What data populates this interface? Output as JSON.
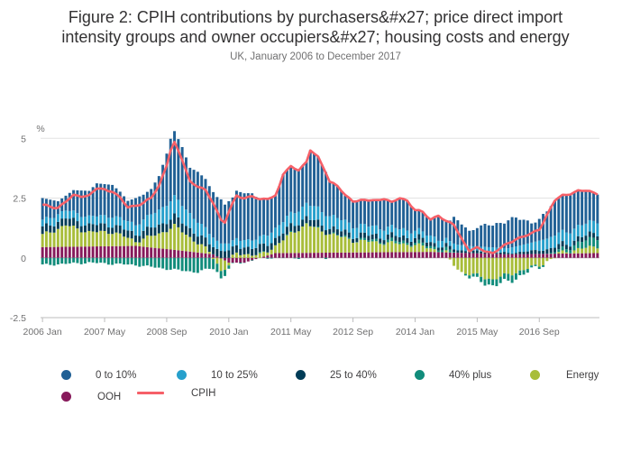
{
  "header": {
    "title_line1": "Figure 2: CPIH contributions by purchasers&#x27; price direct import",
    "title_line2": "intensity groups and owner occupiers&#x27; housing costs and energy",
    "subtitle": "UK, January 2006 to December 2017"
  },
  "legend": {
    "items": [
      {
        "label": "0 to 10%",
        "color": "#206095",
        "shape": "dot"
      },
      {
        "label": "10 to 25%",
        "color": "#27a0cc",
        "shape": "dot"
      },
      {
        "label": "25 to 40%",
        "color": "#003c57",
        "shape": "dot"
      },
      {
        "label": "40% plus",
        "color": "#118c7b",
        "shape": "dot"
      },
      {
        "label": "Energy",
        "color": "#a8bd3a",
        "shape": "dot"
      },
      {
        "label": "OOH",
        "color": "#871a5b",
        "shape": "dot"
      },
      {
        "label": "CPIH",
        "color": "#f66068",
        "shape": "line"
      }
    ]
  },
  "chart_data": {
    "type": "bar",
    "stacked": true,
    "ylabel": "%",
    "ylim": [
      -2.5,
      5.5
    ],
    "y_ticks": [
      "5",
      "2.5",
      "0",
      "-2.5"
    ],
    "y_tick_values": [
      5,
      2.5,
      0,
      -2.5
    ],
    "x_start": "2006-01",
    "x_end": "2017-12",
    "x_ticks": [
      {
        "label": "2006 Jan",
        "month_index": 0
      },
      {
        "label": "2007 May",
        "month_index": 16
      },
      {
        "label": "2008 Sep",
        "month_index": 32
      },
      {
        "label": "2010 Jan",
        "month_index": 48
      },
      {
        "label": "2011 May",
        "month_index": 64
      },
      {
        "label": "2012 Sep",
        "month_index": 80
      },
      {
        "label": "2014 Jan",
        "month_index": 96
      },
      {
        "label": "2015 May",
        "month_index": 112
      },
      {
        "label": "2016 Sep",
        "month_index": 128
      }
    ],
    "cpih_anchors": [
      [
        0,
        2.2
      ],
      [
        4,
        2.1
      ],
      [
        8,
        2.6
      ],
      [
        12,
        2.6
      ],
      [
        14,
        2.9
      ],
      [
        18,
        2.8
      ],
      [
        20,
        2.5
      ],
      [
        22,
        2.1
      ],
      [
        26,
        2.3
      ],
      [
        28,
        2.5
      ],
      [
        30,
        3.0
      ],
      [
        32,
        3.9
      ],
      [
        33,
        4.5
      ],
      [
        34,
        4.8
      ],
      [
        36,
        4.1
      ],
      [
        38,
        3.2
      ],
      [
        40,
        3.0
      ],
      [
        42,
        2.8
      ],
      [
        44,
        2.3
      ],
      [
        46,
        1.6
      ],
      [
        47,
        1.5
      ],
      [
        48,
        1.9
      ],
      [
        50,
        2.6
      ],
      [
        52,
        2.5
      ],
      [
        54,
        2.6
      ],
      [
        56,
        2.4
      ],
      [
        60,
        2.6
      ],
      [
        61,
        3.0
      ],
      [
        62,
        3.5
      ],
      [
        64,
        3.8
      ],
      [
        66,
        3.7
      ],
      [
        68,
        4.0
      ],
      [
        69,
        4.5
      ],
      [
        71,
        4.2
      ],
      [
        73,
        3.6
      ],
      [
        74,
        3.2
      ],
      [
        76,
        3.0
      ],
      [
        78,
        2.6
      ],
      [
        80,
        2.4
      ],
      [
        82,
        2.4
      ],
      [
        86,
        2.4
      ],
      [
        88,
        2.5
      ],
      [
        90,
        2.3
      ],
      [
        92,
        2.5
      ],
      [
        94,
        2.4
      ],
      [
        96,
        2.0
      ],
      [
        98,
        1.9
      ],
      [
        100,
        1.6
      ],
      [
        102,
        1.8
      ],
      [
        104,
        1.5
      ],
      [
        106,
        1.4
      ],
      [
        108,
        0.8
      ],
      [
        110,
        0.3
      ],
      [
        112,
        0.4
      ],
      [
        114,
        0.3
      ],
      [
        116,
        0.2
      ],
      [
        118,
        0.4
      ],
      [
        122,
        0.8
      ],
      [
        126,
        1.0
      ],
      [
        128,
        1.2
      ],
      [
        130,
        1.8
      ],
      [
        132,
        2.4
      ],
      [
        134,
        2.6
      ],
      [
        136,
        2.7
      ],
      [
        138,
        2.8
      ],
      [
        140,
        2.8
      ],
      [
        143,
        2.7
      ]
    ],
    "energy_anchors": [
      [
        0,
        0.5
      ],
      [
        6,
        0.9
      ],
      [
        12,
        0.6
      ],
      [
        18,
        0.6
      ],
      [
        24,
        0.2
      ],
      [
        30,
        0.6
      ],
      [
        34,
        1.0
      ],
      [
        38,
        0.6
      ],
      [
        44,
        0.0
      ],
      [
        46,
        -0.5
      ],
      [
        50,
        0.2
      ],
      [
        56,
        0.1
      ],
      [
        60,
        0.3
      ],
      [
        64,
        0.8
      ],
      [
        68,
        1.2
      ],
      [
        72,
        0.9
      ],
      [
        80,
        0.5
      ],
      [
        96,
        0.3
      ],
      [
        104,
        0.0
      ],
      [
        108,
        -0.6
      ],
      [
        116,
        -0.9
      ],
      [
        128,
        -0.3
      ],
      [
        132,
        0.0
      ],
      [
        143,
        0.3
      ]
    ],
    "ooh_anchors": [
      [
        0,
        0.45
      ],
      [
        24,
        0.5
      ],
      [
        36,
        0.3
      ],
      [
        44,
        0.15
      ],
      [
        48,
        -0.2
      ],
      [
        52,
        -0.2
      ],
      [
        60,
        0.2
      ],
      [
        100,
        0.25
      ],
      [
        110,
        0.2
      ],
      [
        120,
        0.15
      ],
      [
        143,
        0.2
      ]
    ],
    "p40_anchors": [
      [
        0,
        -0.3
      ],
      [
        12,
        -0.2
      ],
      [
        24,
        -0.3
      ],
      [
        34,
        -0.5
      ],
      [
        40,
        -0.6
      ],
      [
        46,
        -0.3
      ],
      [
        50,
        0.0
      ],
      [
        56,
        0.0
      ],
      [
        60,
        0.0
      ],
      [
        72,
        0.0
      ],
      [
        90,
        0.1
      ],
      [
        104,
        0.1
      ],
      [
        108,
        0.0
      ],
      [
        112,
        -0.2
      ],
      [
        120,
        -0.3
      ],
      [
        130,
        0.0
      ],
      [
        143,
        0.4
      ]
    ],
    "p2540_anchors": [
      [
        0,
        0.3
      ],
      [
        24,
        0.3
      ],
      [
        34,
        0.4
      ],
      [
        46,
        0.3
      ],
      [
        52,
        0.3
      ],
      [
        64,
        0.3
      ],
      [
        80,
        0.2
      ],
      [
        96,
        0.2
      ],
      [
        108,
        0.1
      ],
      [
        120,
        0.05
      ],
      [
        132,
        0.2
      ],
      [
        143,
        0.2
      ]
    ],
    "p1025_anchors": [
      [
        0,
        0.3
      ],
      [
        24,
        0.4
      ],
      [
        34,
        0.8
      ],
      [
        46,
        0.3
      ],
      [
        52,
        0.3
      ],
      [
        64,
        0.5
      ],
      [
        70,
        0.6
      ],
      [
        80,
        0.4
      ],
      [
        96,
        0.3
      ],
      [
        110,
        0.2
      ],
      [
        120,
        0.2
      ],
      [
        132,
        0.5
      ],
      [
        143,
        0.5
      ]
    ]
  }
}
